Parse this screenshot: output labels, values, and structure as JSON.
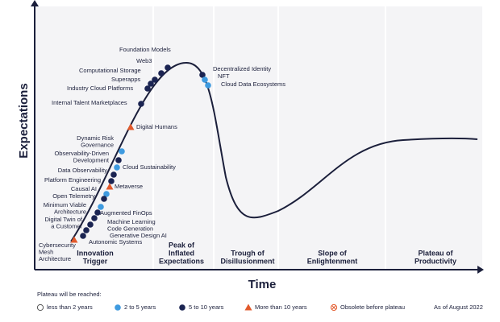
{
  "axes": {
    "y_label": "Expectations",
    "x_label": "Time"
  },
  "phases": [
    {
      "lines": [
        "Innovation",
        "Trigger"
      ]
    },
    {
      "lines": [
        "Peak of",
        "Inflated",
        "Expectations"
      ]
    },
    {
      "lines": [
        "Trough of",
        "Disillusionment"
      ]
    },
    {
      "lines": [
        "Slope of",
        "Enlightenment"
      ]
    },
    {
      "lines": [
        "Plateau of",
        "Productivity"
      ]
    }
  ],
  "technologies": [
    {
      "lines": [
        "Foundation Models"
      ],
      "plateau": "5 to 10 years"
    },
    {
      "lines": [
        "Web3"
      ],
      "plateau": "5 to 10 years"
    },
    {
      "lines": [
        "Computational Storage"
      ],
      "plateau": "5 to 10 years"
    },
    {
      "lines": [
        "Superapps"
      ],
      "plateau": "5 to 10 years"
    },
    {
      "lines": [
        "Industry Cloud Platforms"
      ],
      "plateau": "5 to 10 years"
    },
    {
      "lines": [
        "Internal Talent Marketplaces"
      ],
      "plateau": "5 to 10 years"
    },
    {
      "lines": [
        "Decentralized Identity"
      ],
      "plateau": "5 to 10 years"
    },
    {
      "lines": [
        "NFT"
      ],
      "plateau": "2 to 5 years"
    },
    {
      "lines": [
        "Cloud Data Ecosystems"
      ],
      "plateau": "2 to 5 years"
    },
    {
      "lines": [
        "Digital Humans"
      ],
      "plateau": "More than 10 years"
    },
    {
      "lines": [
        "Dynamic Risk",
        "Governance"
      ],
      "plateau": "2 to 5 years"
    },
    {
      "lines": [
        "Observability-Driven",
        "Development"
      ],
      "plateau": "5 to 10 years"
    },
    {
      "lines": [
        "Cloud Sustainability"
      ],
      "plateau": "2 to 5 years"
    },
    {
      "lines": [
        "Data Observability"
      ],
      "plateau": "5 to 10 years"
    },
    {
      "lines": [
        "Platform Engineering"
      ],
      "plateau": "5 to 10 years"
    },
    {
      "lines": [
        "Metaverse"
      ],
      "plateau": "More than 10 years"
    },
    {
      "lines": [
        "Causal AI"
      ],
      "plateau": "2 to 5 years"
    },
    {
      "lines": [
        "Open Telemetry"
      ],
      "plateau": "5 to 10 years"
    },
    {
      "lines": [
        "Minimum Viable",
        "Architecture"
      ],
      "plateau": "2 to 5 years"
    },
    {
      "lines": [
        "Augmented FinOps"
      ],
      "plateau": "5 to 10 years"
    },
    {
      "lines": [
        "Digital Twin of",
        "a Customer"
      ],
      "plateau": "5 to 10 years"
    },
    {
      "lines": [
        "Machine Learning",
        "Code Generation"
      ],
      "plateau": "5 to 10 years"
    },
    {
      "lines": [
        "Generative Design AI"
      ],
      "plateau": "5 to 10 years"
    },
    {
      "lines": [
        "Autonomic Systems"
      ],
      "plateau": "5 to 10 years"
    },
    {
      "lines": [
        "Cybersecurity",
        "Mesh",
        "Architecture"
      ],
      "plateau": "More than 10 years"
    }
  ],
  "legend": {
    "title": "Plateau will be reached:",
    "items": [
      "less than 2 years",
      "2 to 5 years",
      "5 to 10 years",
      "More than 10 years",
      "Obsolete before plateau"
    ],
    "note": "As of August 2022"
  }
}
